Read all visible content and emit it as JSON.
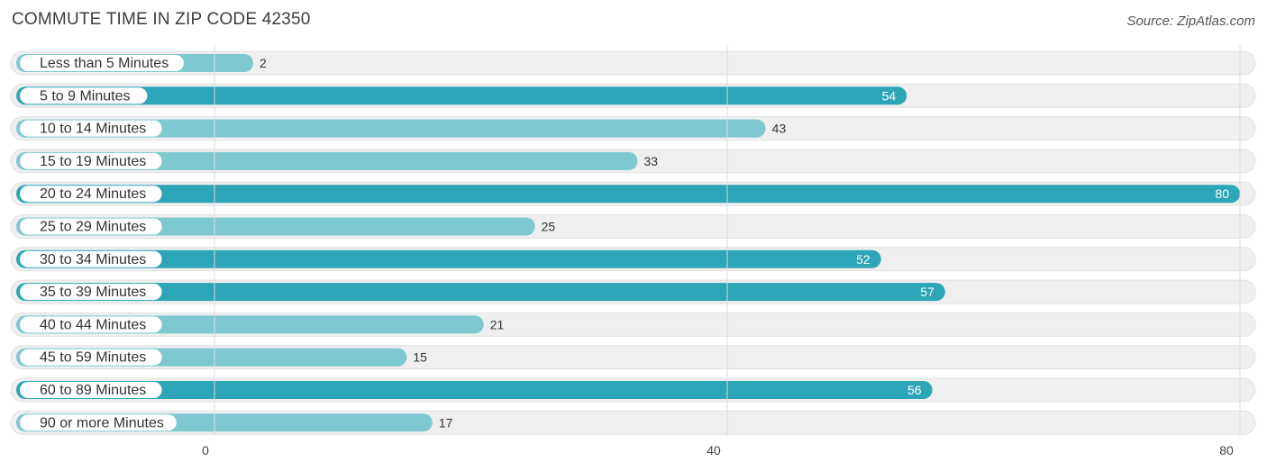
{
  "header": {
    "title": "COMMUTE TIME IN ZIP CODE 42350",
    "source": "Source: ZipAtlas.com"
  },
  "chart_data": {
    "type": "bar",
    "orientation": "horizontal",
    "title": "COMMUTE TIME IN ZIP CODE 42350",
    "categories": [
      "Less than 5 Minutes",
      "5 to 9 Minutes",
      "10 to 14 Minutes",
      "15 to 19 Minutes",
      "20 to 24 Minutes",
      "25 to 29 Minutes",
      "30 to 34 Minutes",
      "35 to 39 Minutes",
      "40 to 44 Minutes",
      "45 to 59 Minutes",
      "60 to 89 Minutes",
      "90 or more Minutes"
    ],
    "values": [
      2,
      54,
      43,
      33,
      80,
      25,
      52,
      57,
      21,
      15,
      56,
      17
    ],
    "xlim": [
      0,
      80
    ],
    "xticks": [
      0,
      40,
      80
    ],
    "grid": true,
    "colors": {
      "bar_light": "#7ec8d2",
      "bar_dark": "#2ca5b7",
      "track": "#efefef",
      "value_inside": "#ffffff",
      "value_outside": "#333333"
    }
  }
}
